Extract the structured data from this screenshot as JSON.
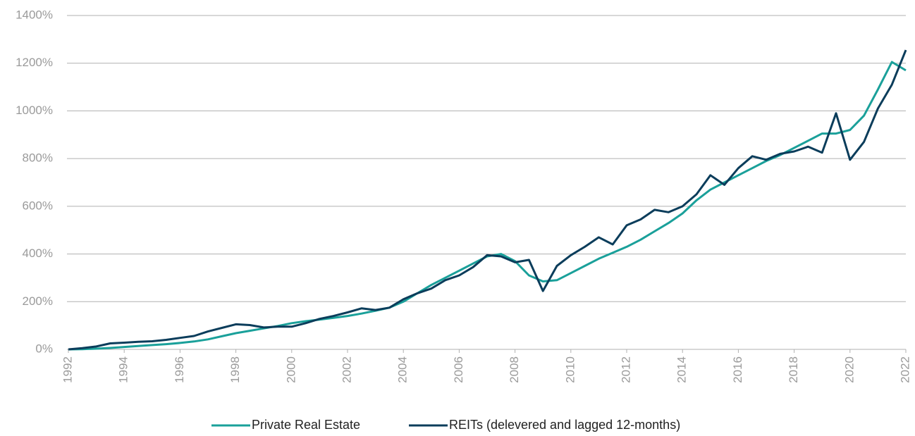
{
  "chart_data": {
    "type": "line",
    "x": [
      1992,
      1992.5,
      1993,
      1993.5,
      1994,
      1994.5,
      1995,
      1995.5,
      1996,
      1996.5,
      1997,
      1997.5,
      1998,
      1998.5,
      1999,
      1999.5,
      2000,
      2000.5,
      2001,
      2001.5,
      2002,
      2002.5,
      2003,
      2003.5,
      2004,
      2004.5,
      2005,
      2005.5,
      2006,
      2006.5,
      2007,
      2007.5,
      2008,
      2008.5,
      2009,
      2009.5,
      2010,
      2010.5,
      2011,
      2011.5,
      2012,
      2012.5,
      2013,
      2013.5,
      2014,
      2014.5,
      2015,
      2015.5,
      2016,
      2016.5,
      2017,
      2017.5,
      2018,
      2018.5,
      2019,
      2019.5,
      2020,
      2020.5,
      2021,
      2021.5,
      2022
    ],
    "series": [
      {
        "name": "Private Real Estate",
        "color": "#1aa09a",
        "values": [
          0,
          1,
          3,
          6,
          10,
          14,
          18,
          22,
          27,
          33,
          42,
          55,
          68,
          78,
          88,
          98,
          110,
          118,
          125,
          132,
          140,
          150,
          162,
          175,
          200,
          235,
          270,
          300,
          330,
          360,
          390,
          400,
          370,
          310,
          285,
          290,
          320,
          350,
          380,
          405,
          430,
          460,
          495,
          530,
          570,
          625,
          670,
          700,
          730,
          760,
          790,
          815,
          845,
          875,
          905,
          905,
          920,
          980,
          1090,
          1205,
          1170
        ]
      },
      {
        "name": "REITs (delevered and lagged 12-months)",
        "color": "#0b3d5b",
        "values": [
          0,
          5,
          12,
          25,
          28,
          32,
          34,
          40,
          48,
          56,
          75,
          90,
          105,
          102,
          92,
          95,
          95,
          110,
          128,
          140,
          155,
          172,
          165,
          175,
          210,
          235,
          255,
          290,
          310,
          345,
          395,
          390,
          365,
          375,
          245,
          350,
          395,
          430,
          470,
          440,
          520,
          545,
          585,
          575,
          600,
          650,
          730,
          690,
          760,
          810,
          795,
          820,
          830,
          850,
          825,
          990,
          795,
          870,
          1010,
          1110,
          1255
        ]
      }
    ],
    "xlim": [
      1992,
      2022
    ],
    "xticks": [
      1992,
      1994,
      1996,
      1998,
      2000,
      2002,
      2004,
      2006,
      2008,
      2010,
      2012,
      2014,
      2016,
      2018,
      2020,
      2022
    ],
    "ylim": [
      0,
      1400
    ],
    "yticks": [
      {
        "value": 0,
        "label": "0%"
      },
      {
        "value": 200,
        "label": "200%"
      },
      {
        "value": 400,
        "label": "400%"
      },
      {
        "value": 600,
        "label": "600%"
      },
      {
        "value": 800,
        "label": "800%"
      },
      {
        "value": 1000,
        "label": "1000%"
      },
      {
        "value": 1200,
        "label": "1200%"
      },
      {
        "value": 1400,
        "label": "1400%"
      }
    ],
    "grid": true,
    "legend": "bottom"
  }
}
